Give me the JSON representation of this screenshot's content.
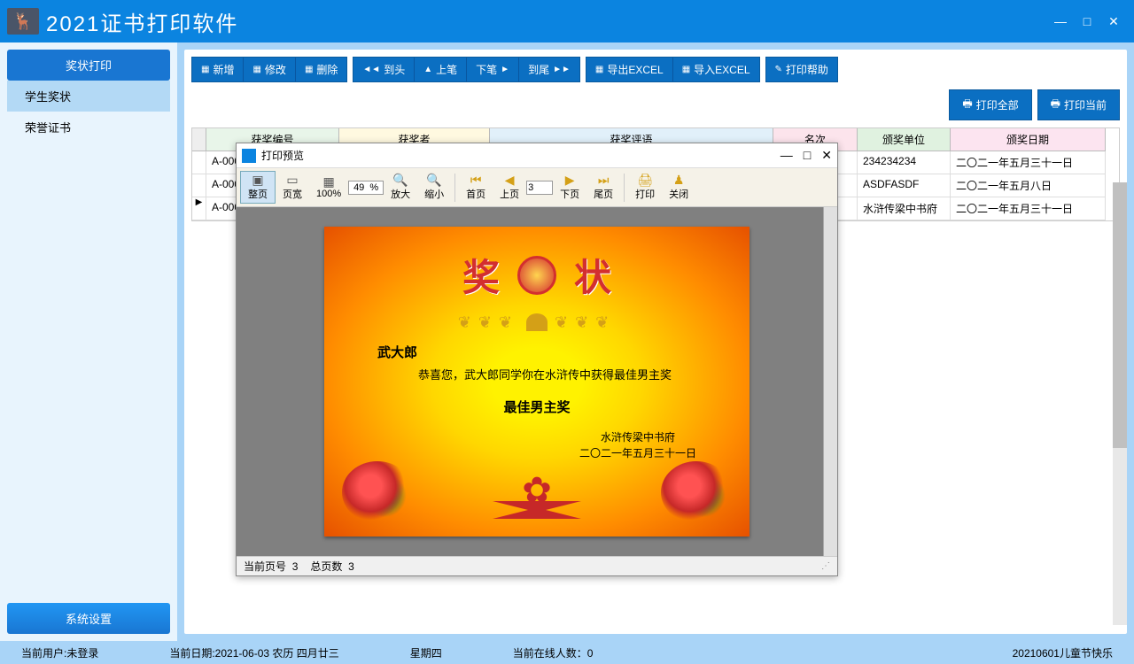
{
  "app": {
    "title": "2021证书打印软件"
  },
  "window_controls": {
    "min": "—",
    "max": "□",
    "close": "✕"
  },
  "sidebar": {
    "print_cert": "奖状打印",
    "items": [
      "学生奖状",
      "荣誉证书"
    ],
    "settings": "系统设置"
  },
  "toolbar": {
    "group1": [
      "新增",
      "修改",
      "删除"
    ],
    "group2_prefix": "◄◄",
    "group2": [
      "到头",
      "上笔",
      "下笔",
      "到尾"
    ],
    "group2_mid1": "▲",
    "group2_mid2": "►",
    "group2_suffix": "►►",
    "group3": [
      "导出EXCEL",
      "导入EXCEL"
    ],
    "group4": "打印帮助",
    "print_all": "打印全部",
    "print_current": "打印当前"
  },
  "grid": {
    "headers": [
      "获奖编号",
      "获奖者",
      "获奖评语",
      "名次",
      "颁奖单位",
      "颁奖日期"
    ],
    "rows": [
      [
        "A-0000",
        "",
        "",
        "",
        "234234234",
        "二〇二一年五月三十一日"
      ],
      [
        "A-0000",
        "",
        "",
        "",
        "ASDFASDF",
        "二〇二一年五月八日"
      ],
      [
        "A-0000",
        "",
        "",
        "",
        "水浒传梁中书府",
        "二〇二一年五月三十一日"
      ]
    ],
    "current_row": 2
  },
  "preview": {
    "title": "打印预览",
    "tb": {
      "fit_page": "整页",
      "fit_width": "页宽",
      "pct100": "100%",
      "zoom_val": "49  %",
      "zoom_in": "放大",
      "zoom_out": "缩小",
      "first": "首页",
      "prev": "上页",
      "page_val": "3",
      "next": "下页",
      "last": "尾页",
      "print": "打印",
      "close": "关闭"
    },
    "cert": {
      "char1": "奖",
      "char2": "状",
      "name": "武大郎",
      "body": "恭喜您，武大郎同学你在水浒传中获得最佳男主奖",
      "award": "最佳男主奖",
      "org": "水浒传梁中书府",
      "date": "二〇二一年五月三十一日"
    },
    "status": {
      "cur_label": "当前页号",
      "cur": "3",
      "total_label": "总页数",
      "total": "3"
    }
  },
  "statusbar": {
    "user": "当前用户:未登录",
    "date": "当前日期:2021-06-03   农历 四月廿三",
    "weekday": "星期四",
    "online": "当前在线人数：0",
    "msg": "20210601儿童节快乐"
  }
}
